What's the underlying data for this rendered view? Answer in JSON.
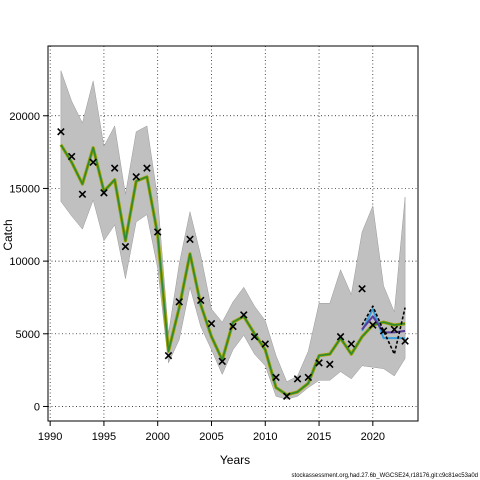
{
  "chart_data": {
    "type": "line",
    "xlabel": "Years",
    "ylabel": "Catch",
    "xlim": [
      1989.8,
      2024.2
    ],
    "ylim": [
      -1000,
      24800
    ],
    "xticks": [
      1990,
      1995,
      2000,
      2005,
      2010,
      2015,
      2020
    ],
    "yticks": [
      0,
      5000,
      10000,
      15000,
      20000
    ],
    "grid": true,
    "footer": "stockassessment.org,had.27.6b_WGCSE24,r18176,git:c9c81ec53a0d",
    "colors": {
      "band": "#c0c0c0",
      "band_outline": "#999999",
      "fit_green": "#2e8b2e",
      "fit_olive": "#a0a000",
      "fit_blue": "#3aa0dc",
      "fit_purple": "#5a3a9a",
      "black": "#000000",
      "grid": "#000000"
    },
    "x": [
      1991,
      1992,
      1993,
      1994,
      1995,
      1996,
      1997,
      1998,
      1999,
      2000,
      2001,
      2002,
      2003,
      2004,
      2005,
      2006,
      2007,
      2008,
      2009,
      2010,
      2011,
      2012,
      2013,
      2014,
      2015,
      2016,
      2017,
      2018,
      2019,
      2020,
      2021,
      2022,
      2023
    ],
    "observed": [
      18900,
      17200,
      14600,
      16800,
      14700,
      16400,
      11000,
      15800,
      16400,
      12000,
      3500,
      7200,
      11500,
      7300,
      5700,
      3100,
      5500,
      6300,
      4800,
      4300,
      2000,
      700,
      1900,
      2000,
      3000,
      2900,
      4800,
      4300,
      8100,
      5600,
      5200,
      5300,
      4500
    ],
    "fit": [
      18000,
      16800,
      15300,
      17800,
      14800,
      15600,
      11400,
      15500,
      15800,
      11800,
      3800,
      6800,
      10500,
      7000,
      4800,
      3200,
      5800,
      6200,
      5000,
      3900,
      1300,
      800,
      1000,
      1600,
      3500,
      3600,
      4700,
      3600,
      4800,
      5600,
      5800,
      5600,
      5700
    ],
    "ci_upper": [
      23100,
      21000,
      19500,
      22400,
      17900,
      19300,
      14600,
      18900,
      19300,
      14300,
      5000,
      9800,
      13400,
      10400,
      6700,
      5800,
      7200,
      8200,
      6900,
      5900,
      3500,
      1700,
      2100,
      3800,
      7100,
      7100,
      9400,
      7700,
      12000,
      13800,
      8300,
      6500,
      14400
    ],
    "ci_lower": [
      14100,
      13100,
      12200,
      14200,
      11400,
      12500,
      8800,
      12700,
      13200,
      9500,
      3000,
      4600,
      8200,
      5500,
      3900,
      2200,
      3900,
      4900,
      3600,
      2800,
      700,
      500,
      700,
      1300,
      1800,
      1800,
      2400,
      1900,
      2800,
      2700,
      2600,
      2100,
      3300
    ],
    "prediction_years": [
      2019,
      2020,
      2021,
      2022,
      2023
    ],
    "pred_purple": [
      5300,
      6200,
      5100,
      5100,
      5200
    ],
    "pred_blue": [
      5200,
      6700,
      4700,
      4700,
      4700
    ],
    "pred_dashed": [
      5600,
      6900,
      5200,
      3600,
      6800
    ]
  }
}
